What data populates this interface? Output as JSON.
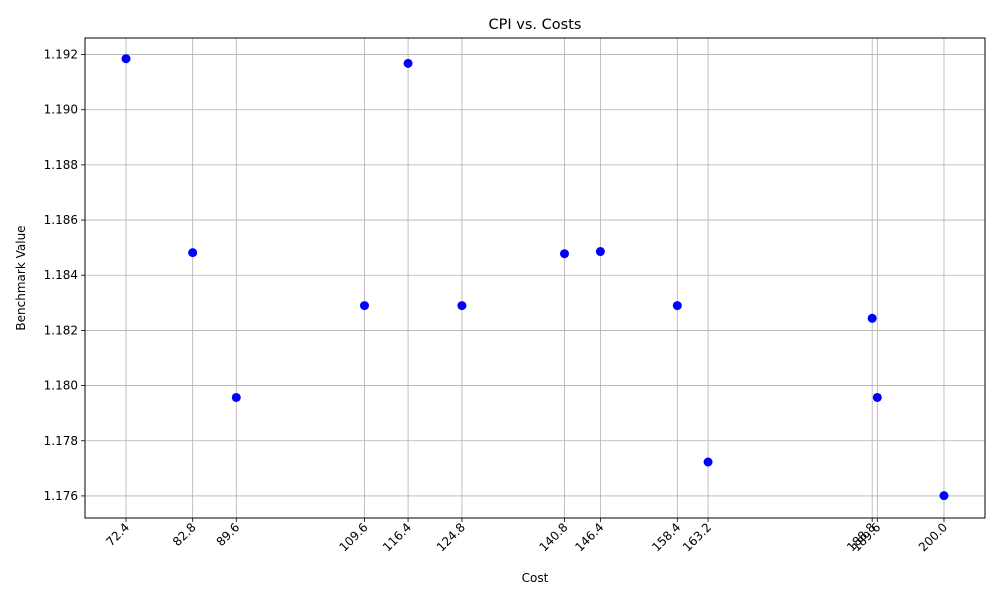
{
  "chart_data": {
    "type": "scatter",
    "title": "CPI vs. Costs",
    "xlabel": "Cost",
    "ylabel": "Benchmark Value",
    "grid": true,
    "marker_color": "#0000ff",
    "grid_color": "#b0b0b0",
    "xlim": [
      66.0,
      206.4
    ],
    "ylim": [
      1.1752,
      1.1926
    ],
    "x_ticks": [
      "72.4",
      "82.8",
      "89.6",
      "109.6",
      "116.4",
      "124.8",
      "140.8",
      "146.4",
      "158.4",
      "163.2",
      "188.8",
      "189.6",
      "200.0"
    ],
    "y_ticks": [
      "1.176",
      "1.178",
      "1.180",
      "1.182",
      "1.184",
      "1.186",
      "1.188",
      "1.190",
      "1.192"
    ],
    "points": [
      {
        "x": 72.4,
        "y": 1.19185
      },
      {
        "x": 82.8,
        "y": 1.18482
      },
      {
        "x": 89.6,
        "y": 1.17957
      },
      {
        "x": 109.6,
        "y": 1.1829
      },
      {
        "x": 116.4,
        "y": 1.19168
      },
      {
        "x": 124.8,
        "y": 1.1829
      },
      {
        "x": 140.8,
        "y": 1.18478
      },
      {
        "x": 146.4,
        "y": 1.18486
      },
      {
        "x": 158.4,
        "y": 1.1829
      },
      {
        "x": 163.2,
        "y": 1.17723
      },
      {
        "x": 188.8,
        "y": 1.18244
      },
      {
        "x": 189.6,
        "y": 1.17957
      },
      {
        "x": 200.0,
        "y": 1.17601
      }
    ]
  }
}
